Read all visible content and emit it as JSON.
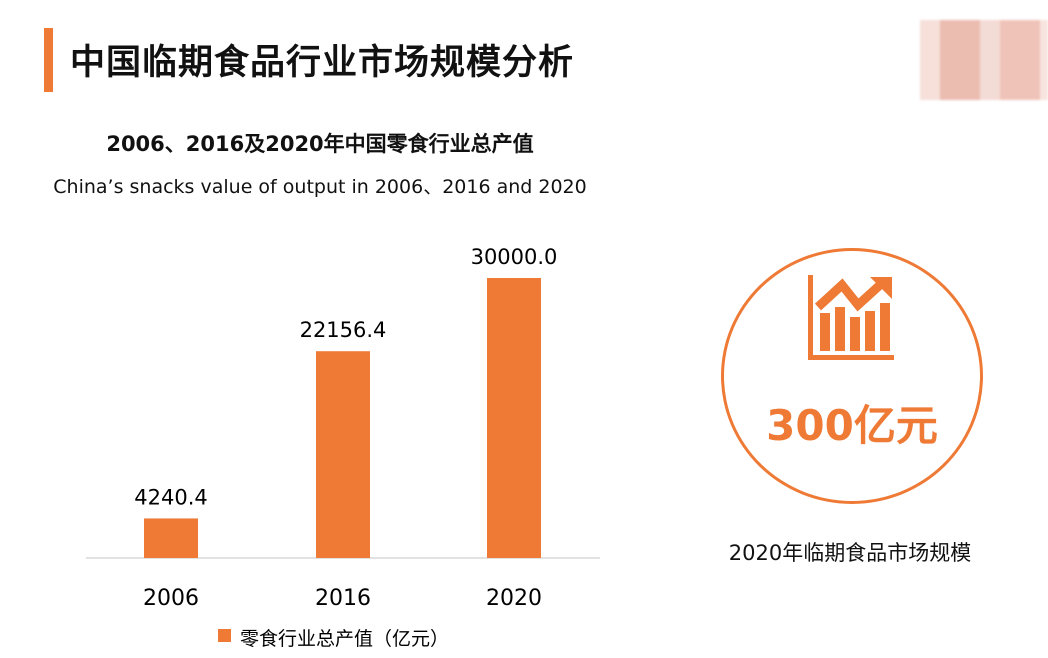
{
  "header": {
    "title": "中国临期食品行业市场规模分析",
    "logo_text": ""
  },
  "colors": {
    "accent": "#ee7a35",
    "bar": "#ee7a35",
    "axis": "#d9d9d9"
  },
  "chart_data": {
    "type": "bar",
    "title": "2006、2016及2020年中国零食行业总产值",
    "subtitle": "China’s snacks value of output in 2006、2016 and 2020",
    "categories": [
      "2006",
      "2016",
      "2020"
    ],
    "series": [
      {
        "name": "零食行业总产值（亿元）",
        "values": [
          4240.4,
          22156.4,
          30000.0
        ]
      }
    ],
    "data_labels": [
      "4240.4",
      "22156.4",
      "30000.0"
    ],
    "ylim": [
      0,
      30000
    ],
    "grid": false,
    "legend": "bottom"
  },
  "highlight": {
    "icon": "growth-chart-icon",
    "value": "300亿元",
    "caption": "2020年临期食品市场规模"
  }
}
